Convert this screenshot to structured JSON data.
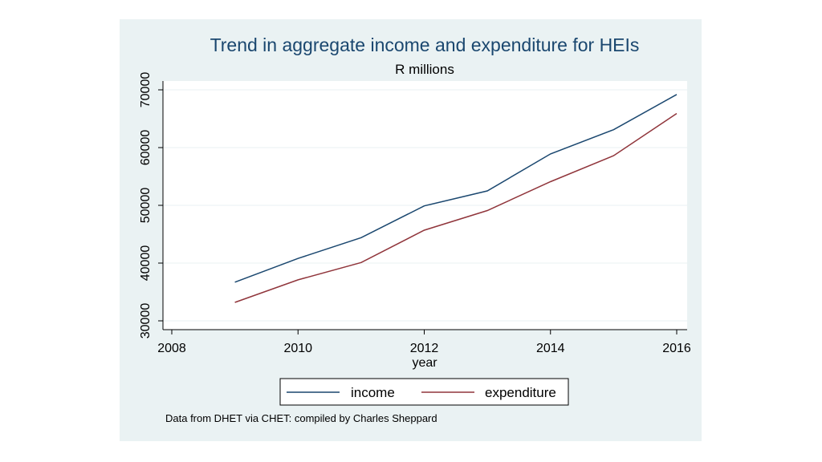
{
  "chart_data": {
    "type": "line",
    "title": "Trend in aggregate income and expenditure for HEIs",
    "subtitle": "R millions",
    "xlabel": "year",
    "ylabel": "",
    "xlim": [
      2008,
      2016
    ],
    "ylim": [
      30000,
      70000
    ],
    "xticks": [
      "2008",
      "2010",
      "2012",
      "2014",
      "2016"
    ],
    "yticks": [
      "30000",
      "40000",
      "50000",
      "60000",
      "70000"
    ],
    "grid": true,
    "legend_position": "bottom",
    "x": [
      2009,
      2010,
      2011,
      2012,
      2013,
      2014,
      2015,
      2016
    ],
    "series": [
      {
        "name": "income",
        "color": "#1a476f",
        "values": [
          36700,
          40800,
          44400,
          49900,
          52500,
          58900,
          63100,
          69200
        ]
      },
      {
        "name": "expenditure",
        "color": "#90353b",
        "values": [
          33200,
          37100,
          40100,
          45700,
          49100,
          54100,
          58600,
          65900
        ]
      }
    ],
    "note": "Data from DHET via CHET: compiled by Charles Sheppard"
  }
}
